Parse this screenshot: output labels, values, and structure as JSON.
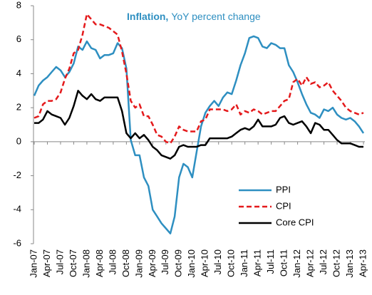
{
  "chart_data": {
    "type": "line",
    "title": "Inflation,",
    "subtitle": "YoY percent change",
    "categories": [
      "Jan-07",
      null,
      null,
      "Apr-07",
      null,
      null,
      "Jul-07",
      null,
      null,
      "Oct-07",
      null,
      null,
      "Jan-08",
      null,
      null,
      "Apr-08",
      null,
      null,
      "Jul-08",
      null,
      null,
      "Oct-08",
      null,
      null,
      "Jan-09",
      null,
      null,
      "Apr-09",
      null,
      null,
      "Jul-09",
      null,
      null,
      "Oct-09",
      null,
      null,
      "Jan-10",
      null,
      null,
      "Apr-10",
      null,
      null,
      "Jul-10",
      null,
      null,
      "Oct-10",
      null,
      null,
      "Jan-11",
      null,
      null,
      "Apr-11",
      null,
      null,
      "Jul-11",
      null,
      null,
      "Oct-11",
      null,
      null,
      "Jan-12",
      null,
      null,
      "Apr-12",
      null,
      null,
      "Jul-12",
      null,
      null,
      "Oct-12",
      null,
      null,
      "Jan-13",
      null,
      null,
      "Apr-13"
    ],
    "series": [
      {
        "name": "PPI",
        "color": "#2e8fc1",
        "dash": false,
        "values": [
          2.7,
          3.3,
          3.6,
          3.8,
          4.1,
          4.4,
          4.2,
          3.8,
          4.1,
          4.6,
          5.6,
          5.4,
          5.9,
          5.5,
          5.4,
          4.9,
          5.1,
          5.1,
          5.2,
          5.8,
          5.5,
          4.3,
          0.1,
          -0.8,
          -0.8,
          -2.1,
          -2.6,
          -4.0,
          -4.4,
          -4.8,
          -5.1,
          -5.4,
          -4.4,
          -2.1,
          -1.3,
          -1.5,
          -2.1,
          -0.6,
          0.9,
          1.7,
          2.1,
          2.4,
          2.1,
          2.6,
          2.9,
          2.8,
          3.6,
          4.5,
          5.2,
          6.1,
          6.2,
          6.1,
          5.6,
          5.5,
          5.8,
          5.7,
          5.5,
          5.5,
          4.5,
          4.1,
          3.5,
          2.8,
          2.2,
          1.7,
          1.6,
          1.4,
          1.9,
          1.8,
          2.0,
          1.6,
          1.4,
          1.3,
          1.4,
          1.2,
          0.9,
          0.5
        ]
      },
      {
        "name": "CPI",
        "color": "#e41a1c",
        "dash": true,
        "values": [
          1.4,
          1.5,
          2.2,
          2.4,
          2.4,
          2.5,
          2.9,
          3.7,
          4.3,
          5.2,
          5.4,
          6.3,
          7.5,
          7.2,
          6.9,
          6.9,
          6.8,
          6.7,
          6.5,
          6.3,
          5.3,
          4.0,
          2.4,
          2.0,
          2.2,
          1.5,
          1.5,
          1.0,
          0.4,
          0.3,
          0.0,
          -0.1,
          0.3,
          0.9,
          0.7,
          0.6,
          0.6,
          0.6,
          1.2,
          1.3,
          1.9,
          1.9,
          1.9,
          1.9,
          1.8,
          1.9,
          2.2,
          1.6,
          1.8,
          1.7,
          1.9,
          1.8,
          1.6,
          1.7,
          1.8,
          1.8,
          2.1,
          2.4,
          2.5,
          3.5,
          3.7,
          3.3,
          3.8,
          3.4,
          3.5,
          3.2,
          3.3,
          3.5,
          3.0,
          2.7,
          2.4,
          2.0,
          1.8,
          1.7,
          1.6,
          1.7
        ]
      },
      {
        "name": "Core CPI",
        "color": "#000000",
        "dash": false,
        "values": [
          1.1,
          1.1,
          1.3,
          1.8,
          1.6,
          1.5,
          1.4,
          1.0,
          1.4,
          2.1,
          3.0,
          2.7,
          2.5,
          2.8,
          2.5,
          2.4,
          2.6,
          2.6,
          2.6,
          2.6,
          1.8,
          0.5,
          0.2,
          0.5,
          0.2,
          0.4,
          0.1,
          -0.3,
          -0.5,
          -0.8,
          -0.9,
          -1.0,
          -0.8,
          -0.3,
          -0.2,
          -0.3,
          -0.3,
          -0.3,
          -0.2,
          -0.2,
          0.2,
          0.2,
          0.2,
          0.2,
          0.2,
          0.3,
          0.5,
          0.7,
          0.8,
          0.7,
          0.9,
          1.3,
          0.9,
          0.9,
          0.9,
          1.0,
          1.4,
          1.5,
          1.1,
          1.0,
          1.1,
          1.2,
          0.9,
          0.5,
          1.1,
          1.0,
          0.7,
          0.7,
          0.4,
          0.1,
          -0.1,
          -0.1,
          -0.1,
          -0.2,
          -0.3,
          -0.3
        ]
      }
    ],
    "ylim": [
      -6,
      8
    ],
    "yticks": [
      -6,
      -4,
      -2,
      0,
      2,
      4,
      6,
      8
    ],
    "grid": false,
    "legend": "lower right"
  }
}
